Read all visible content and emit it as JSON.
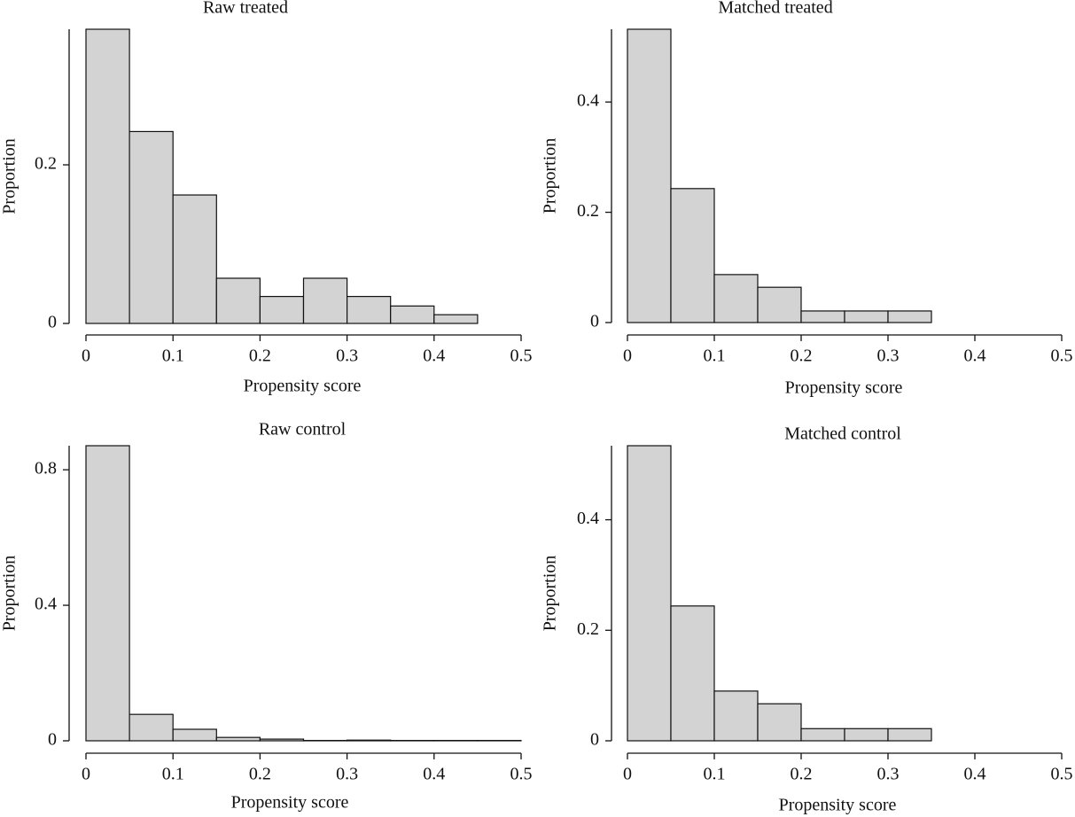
{
  "chart_data": [
    {
      "type": "histogram",
      "title": "Raw treated",
      "xlabel": "Propensity score",
      "ylabel": "Proportion",
      "color": "#d3d3d3",
      "bins": [
        0,
        0.05,
        0.1,
        0.15,
        0.2,
        0.25,
        0.3,
        0.35,
        0.4,
        0.45,
        0.5
      ],
      "values": [
        0.371,
        0.242,
        0.162,
        0.057,
        0.034,
        0.057,
        0.034,
        0.022,
        0.011,
        0
      ],
      "xlim": [
        0,
        0.5
      ],
      "ylim": [
        0,
        0.371
      ],
      "xticks": [
        0,
        0.1,
        0.2,
        0.3,
        0.4,
        0.5
      ],
      "yticks": [
        0,
        0.2
      ]
    },
    {
      "type": "histogram",
      "title": "Matched treated",
      "xlabel": "Propensity score",
      "ylabel": "Proportion",
      "color": "#d3d3d3",
      "bins": [
        0,
        0.05,
        0.1,
        0.15,
        0.2,
        0.25,
        0.3,
        0.35,
        0.4,
        0.45,
        0.5
      ],
      "values": [
        0.532,
        0.243,
        0.087,
        0.064,
        0.021,
        0.021,
        0.021,
        0,
        0,
        0
      ],
      "xlim": [
        0,
        0.5
      ],
      "ylim": [
        0,
        0.532
      ],
      "xticks": [
        0,
        0.1,
        0.2,
        0.3,
        0.4,
        0.5
      ],
      "yticks": [
        0,
        0.2,
        0.4
      ]
    },
    {
      "type": "histogram",
      "title": "Raw control",
      "xlabel": "Propensity score",
      "ylabel": "Proportion",
      "color": "#d3d3d3",
      "bins": [
        0,
        0.05,
        0.1,
        0.15,
        0.2,
        0.25,
        0.3,
        0.35,
        0.4,
        0.45,
        0.5
      ],
      "values": [
        0.871,
        0.078,
        0.034,
        0.01,
        0.005,
        0.001,
        0.002,
        0.001,
        0.001,
        0.001
      ],
      "xlim": [
        0,
        0.5
      ],
      "ylim": [
        0,
        0.871
      ],
      "xticks": [
        0,
        0.1,
        0.2,
        0.3,
        0.4,
        0.5
      ],
      "yticks": [
        0,
        0.4,
        0.8
      ]
    },
    {
      "type": "histogram",
      "title": "Matched control",
      "xlabel": "Propensity score",
      "ylabel": "Proportion",
      "color": "#d3d3d3",
      "bins": [
        0,
        0.05,
        0.1,
        0.15,
        0.2,
        0.25,
        0.3,
        0.35,
        0.4,
        0.45,
        0.5
      ],
      "values": [
        0.534,
        0.244,
        0.09,
        0.067,
        0.022,
        0.022,
        0.022,
        0,
        0,
        0
      ],
      "xlim": [
        0,
        0.5
      ],
      "ylim": [
        0,
        0.534
      ],
      "xticks": [
        0,
        0.1,
        0.2,
        0.3,
        0.4,
        0.5
      ],
      "yticks": [
        0,
        0.2,
        0.4
      ]
    }
  ]
}
